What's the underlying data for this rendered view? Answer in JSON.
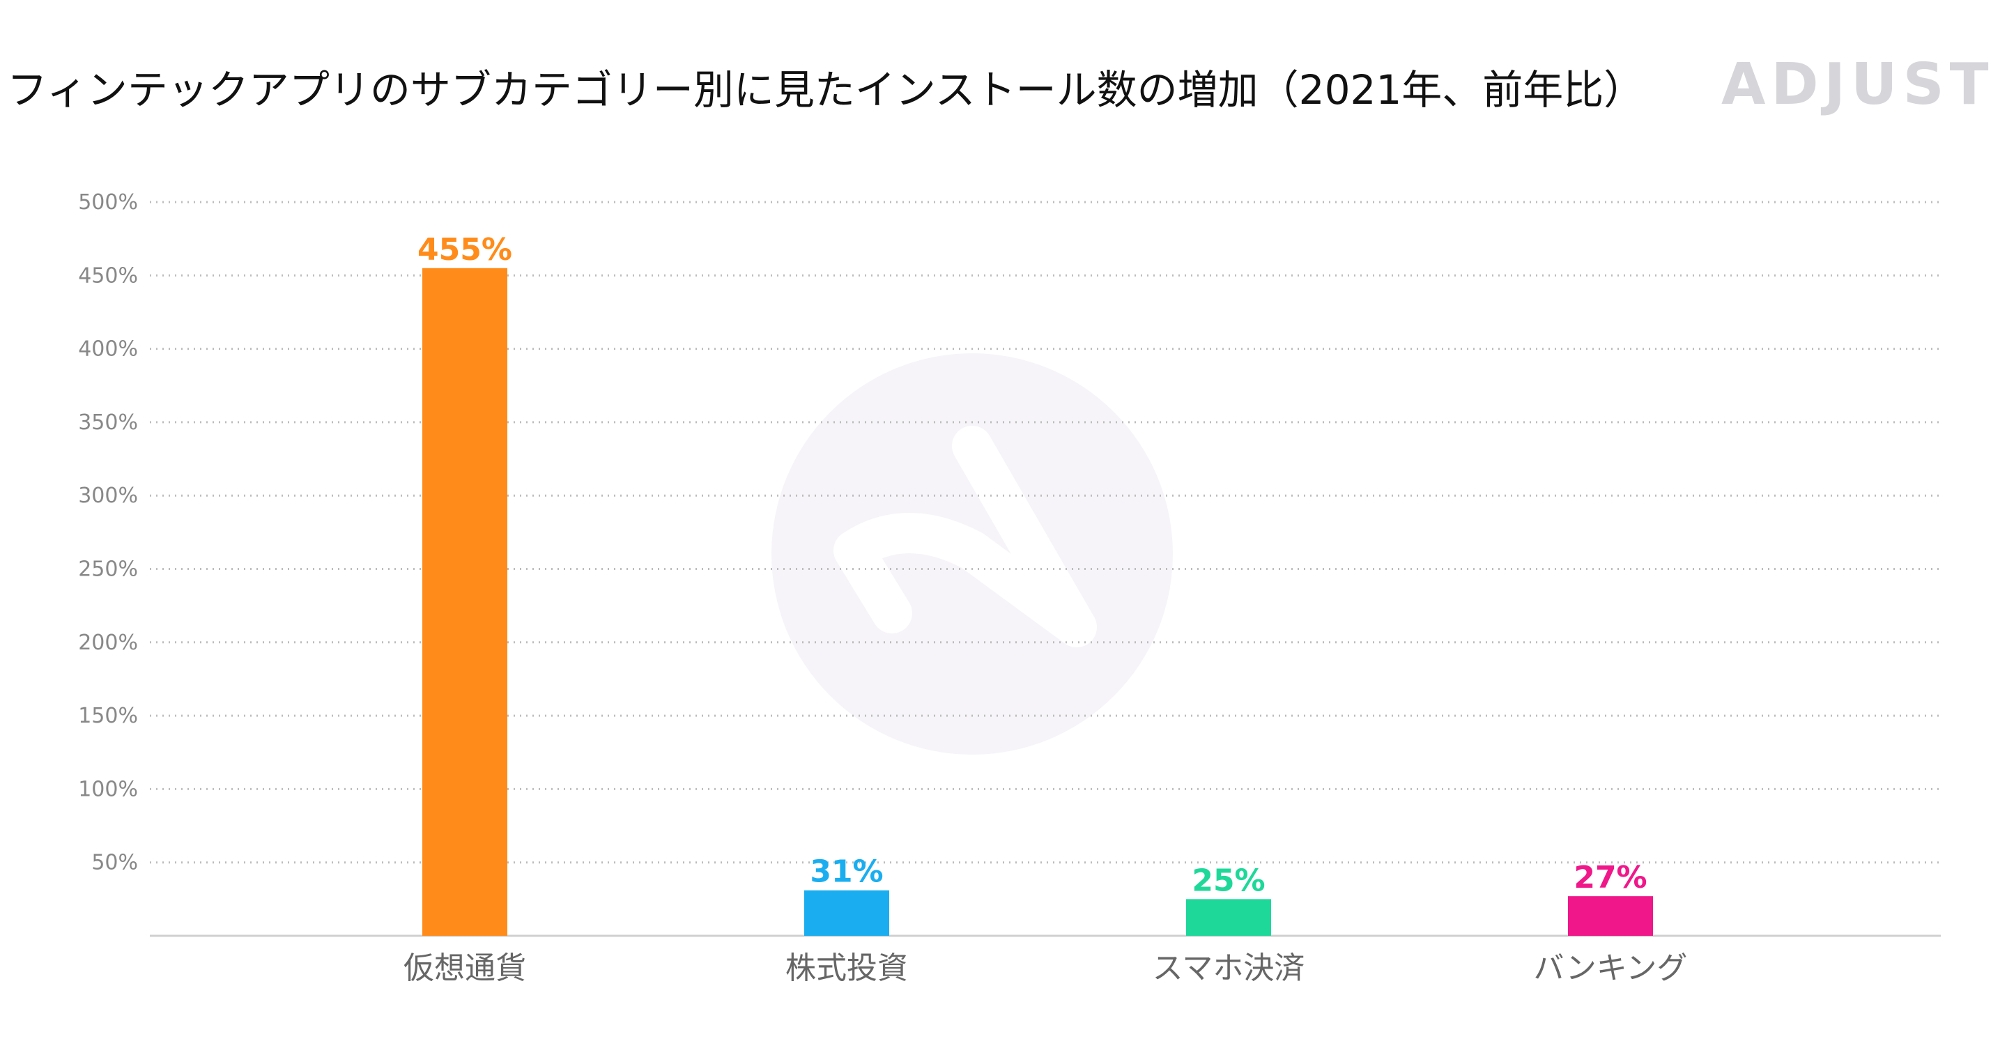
{
  "chart_data": {
    "type": "bar",
    "title": "フィンテックアプリのサブカテゴリー別に見たインストール数の増加（2021年、前年比）",
    "xlabel": "",
    "ylabel": "",
    "categories": [
      "仮想通貨",
      "株式投資",
      "スマホ決済",
      "バンキング"
    ],
    "values": [
      455,
      31,
      25,
      27
    ],
    "value_labels": [
      "455%",
      "31%",
      "25%",
      "27%"
    ],
    "bar_colors": [
      "#FF8C1A",
      "#1AAEF0",
      "#1ED89A",
      "#F0178A"
    ],
    "ylim": [
      0,
      500
    ],
    "yticks": [
      50,
      100,
      150,
      200,
      250,
      300,
      350,
      400,
      450,
      500
    ],
    "ytick_labels": [
      "50%",
      "100%",
      "150%",
      "200%",
      "250%",
      "300%",
      "350%",
      "400%",
      "450%",
      "500%"
    ],
    "grid": true,
    "legend": "none"
  },
  "branding": {
    "logo_text": "ADJUST",
    "logo_color": "#D6D6DA",
    "watermark_color": "#F6F4F8"
  }
}
